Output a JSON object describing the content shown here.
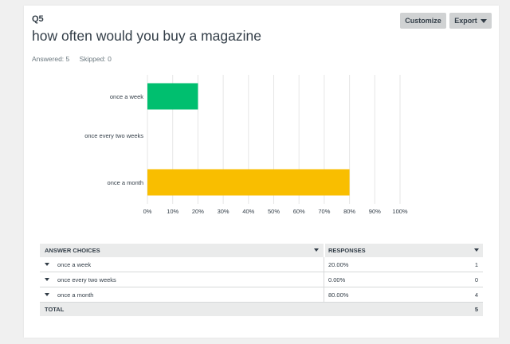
{
  "question": {
    "number": "Q5",
    "title": "how often would you buy a magazine",
    "answered": "Answered: 5",
    "skipped": "Skipped: 0"
  },
  "toolbar": {
    "customize_label": "Customize",
    "export_label": "Export"
  },
  "colors": {
    "bar_week": "#00bf6f",
    "bar_two_weeks": "#507cb6",
    "bar_month": "#f9be00",
    "grid": "#e6e6e6",
    "text": "#333e48"
  },
  "chart_data": {
    "type": "bar",
    "orientation": "horizontal",
    "categories": [
      "once a week",
      "once every two weeks",
      "once a month"
    ],
    "values": [
      20,
      0,
      80
    ],
    "unit": "%",
    "xlim": [
      0,
      100
    ],
    "ticks": [
      "0%",
      "10%",
      "20%",
      "30%",
      "40%",
      "50%",
      "60%",
      "70%",
      "80%",
      "90%",
      "100%"
    ],
    "grid": true,
    "title": "",
    "xlabel": "",
    "ylabel": ""
  },
  "table": {
    "col_choices": "ANSWER CHOICES",
    "col_responses": "RESPONSES",
    "rows": [
      {
        "label": "once a week",
        "pct": "20.00%",
        "count": "1"
      },
      {
        "label": "once every two weeks",
        "pct": "0.00%",
        "count": "0"
      },
      {
        "label": "once a month",
        "pct": "80.00%",
        "count": "4"
      }
    ],
    "total_label": "TOTAL",
    "total_count": "5"
  }
}
